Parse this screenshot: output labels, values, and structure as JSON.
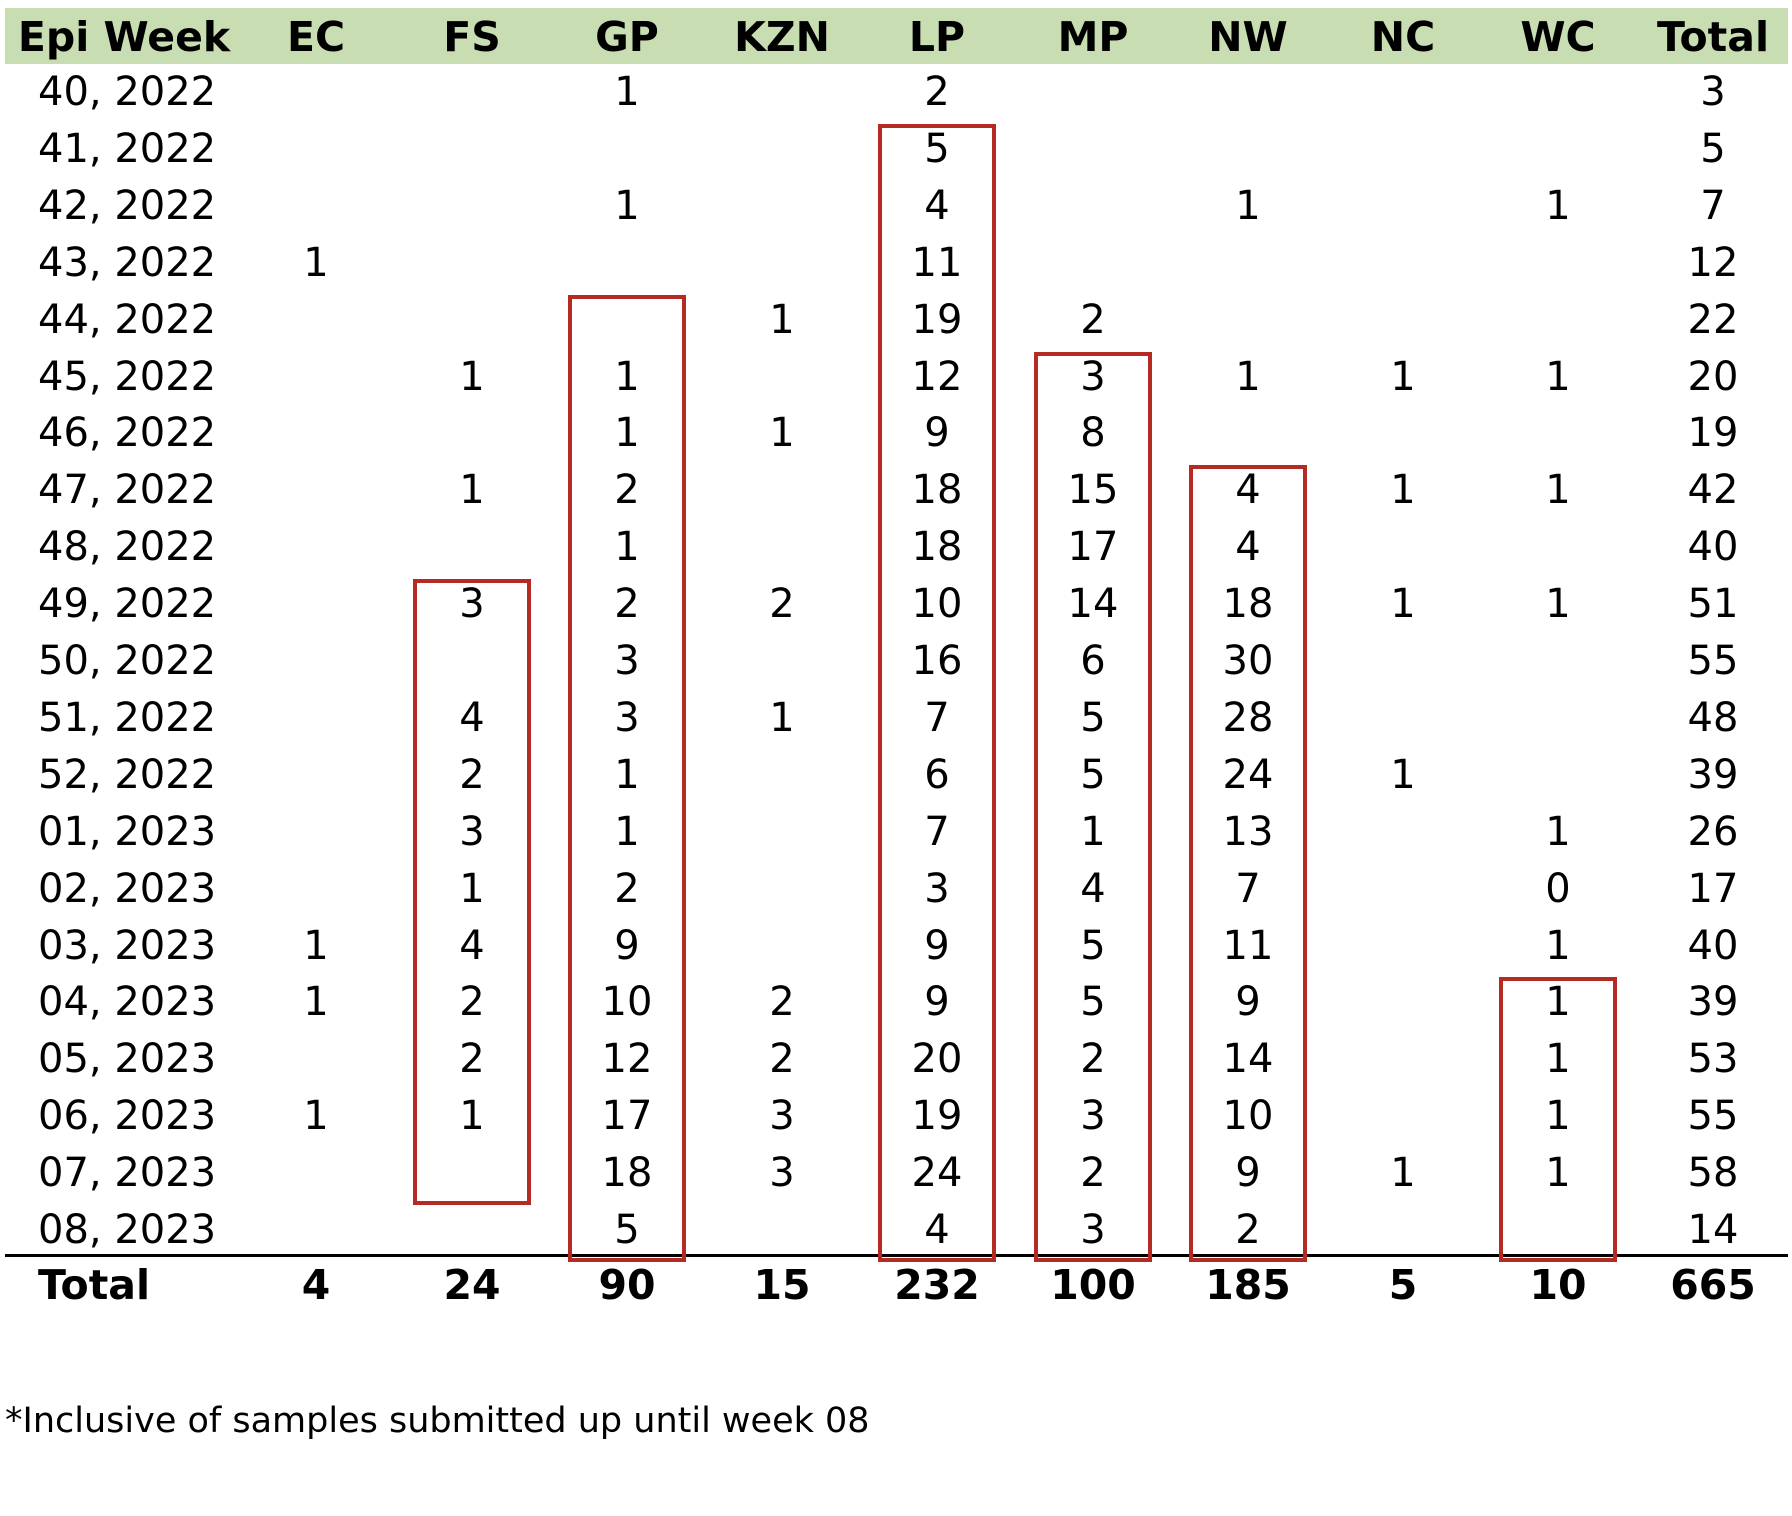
{
  "header": {
    "row_label": "Epi Week",
    "columns": [
      "EC",
      "FS",
      "GP",
      "KZN",
      "LP",
      "MP",
      "NW",
      "NC",
      "WC",
      "Total"
    ]
  },
  "rows": [
    {
      "week": "40, 2022",
      "values": [
        "",
        "",
        "1",
        "",
        "2",
        "",
        "",
        "",
        "",
        "3"
      ]
    },
    {
      "week": "41, 2022",
      "values": [
        "",
        "",
        "",
        "",
        "5",
        "",
        "",
        "",
        "",
        "5"
      ]
    },
    {
      "week": "42, 2022",
      "values": [
        "",
        "",
        "1",
        "",
        "4",
        "",
        "1",
        "",
        "1",
        "7"
      ]
    },
    {
      "week": "43, 2022",
      "values": [
        "1",
        "",
        "",
        "",
        "11",
        "",
        "",
        "",
        "",
        "12"
      ]
    },
    {
      "week": "44, 2022",
      "values": [
        "",
        "",
        "",
        "1",
        "19",
        "2",
        "",
        "",
        "",
        "22"
      ]
    },
    {
      "week": "45, 2022",
      "values": [
        "",
        "1",
        "1",
        "",
        "12",
        "3",
        "1",
        "1",
        "1",
        "20"
      ]
    },
    {
      "week": "46, 2022",
      "values": [
        "",
        "",
        "1",
        "1",
        "9",
        "8",
        "",
        "",
        "",
        "19"
      ]
    },
    {
      "week": "47, 2022",
      "values": [
        "",
        "1",
        "2",
        "",
        "18",
        "15",
        "4",
        "1",
        "1",
        "42"
      ]
    },
    {
      "week": "48, 2022",
      "values": [
        "",
        "",
        "1",
        "",
        "18",
        "17",
        "4",
        "",
        "",
        "40"
      ]
    },
    {
      "week": "49, 2022",
      "values": [
        "",
        "3",
        "2",
        "2",
        "10",
        "14",
        "18",
        "1",
        "1",
        "51"
      ]
    },
    {
      "week": "50, 2022",
      "values": [
        "",
        "",
        "3",
        "",
        "16",
        "6",
        "30",
        "",
        "",
        "55"
      ]
    },
    {
      "week": "51, 2022",
      "values": [
        "",
        "4",
        "3",
        "1",
        "7",
        "5",
        "28",
        "",
        "",
        "48"
      ]
    },
    {
      "week": "52, 2022",
      "values": [
        "",
        "2",
        "1",
        "",
        "6",
        "5",
        "24",
        "1",
        "",
        "39"
      ]
    },
    {
      "week": "01, 2023",
      "values": [
        "",
        "3",
        "1",
        "",
        "7",
        "1",
        "13",
        "",
        "1",
        "26"
      ]
    },
    {
      "week": "02, 2023",
      "values": [
        "",
        "1",
        "2",
        "",
        "3",
        "4",
        "7",
        "",
        "0",
        "17"
      ]
    },
    {
      "week": "03, 2023",
      "values": [
        "1",
        "4",
        "9",
        "",
        "9",
        "5",
        "11",
        "",
        "1",
        "40"
      ]
    },
    {
      "week": "04, 2023",
      "values": [
        "1",
        "2",
        "10",
        "2",
        "9",
        "5",
        "9",
        "",
        "1",
        "39"
      ]
    },
    {
      "week": "05, 2023",
      "values": [
        "",
        "2",
        "12",
        "2",
        "20",
        "2",
        "14",
        "",
        "1",
        "53"
      ]
    },
    {
      "week": "06, 2023",
      "values": [
        "1",
        "1",
        "17",
        "3",
        "19",
        "3",
        "10",
        "",
        "1",
        "55"
      ]
    },
    {
      "week": "07, 2023",
      "values": [
        "",
        "",
        "18",
        "3",
        "24",
        "2",
        "9",
        "1",
        "1",
        "58"
      ]
    },
    {
      "week": "08, 2023",
      "values": [
        "",
        "",
        "5",
        "",
        "4",
        "3",
        "2",
        "",
        "",
        "14"
      ]
    }
  ],
  "totals": {
    "label": "Total",
    "values": [
      "4",
      "24",
      "90",
      "15",
      "232",
      "100",
      "185",
      "5",
      "10",
      "665"
    ]
  },
  "highlight_color": "#b52a22",
  "header_band_color": "#c8ddb2",
  "highlights": [
    {
      "column": "FS",
      "from_week": "49, 2022",
      "to_week": "07, 2023"
    },
    {
      "column": "GP",
      "from_week": "44, 2022",
      "to_week": "08, 2023"
    },
    {
      "column": "LP",
      "from_week": "41, 2022",
      "to_week": "08, 2023"
    },
    {
      "column": "MP",
      "from_week": "45, 2022",
      "to_week": "08, 2023"
    },
    {
      "column": "NW",
      "from_week": "47, 2022",
      "to_week": "08, 2023"
    },
    {
      "column": "WC",
      "from_week": "04, 2023",
      "to_week": "08, 2023"
    }
  ],
  "footnote": "*Inclusive of samples submitted up until week 08"
}
